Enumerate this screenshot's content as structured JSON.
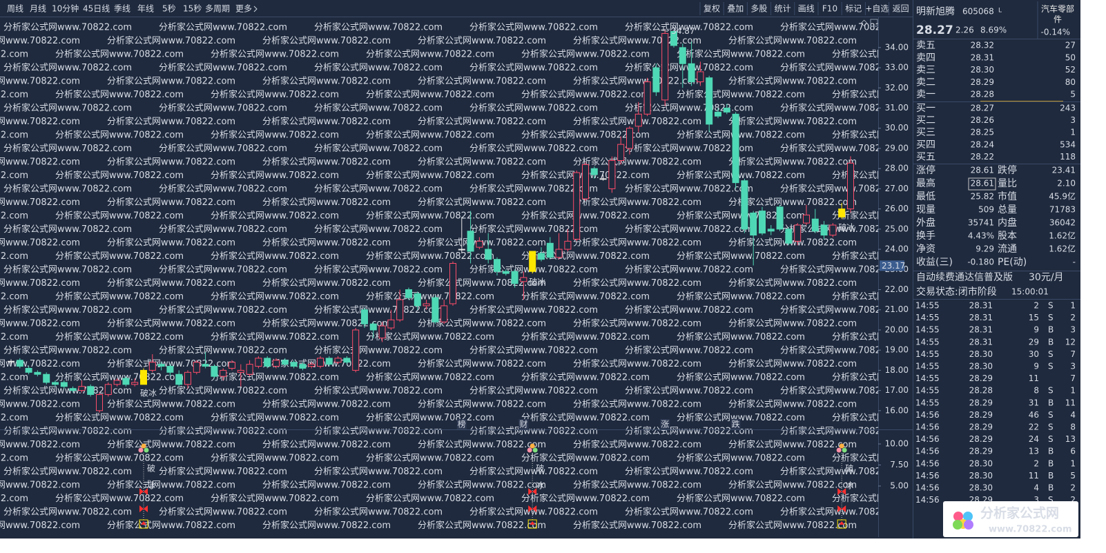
{
  "toolbar": {
    "left": [
      "周线",
      "月线",
      "10分钟",
      "45日线",
      "季线",
      "年线",
      "5秒",
      "15秒",
      "多周期",
      "更多"
    ],
    "right": [
      "复权",
      "叠加",
      "多股",
      "统计",
      "画线",
      "F10",
      "标记",
      "+自选",
      "返回"
    ]
  },
  "watermark": "分析家公式网www.70822.com",
  "chart_data": {
    "type": "candlestick",
    "open": [
      18.45,
      18.5,
      18.1,
      17.9,
      17.8,
      17.4,
      17.4,
      17.1,
      17.0,
      17.2,
      16.0,
      16.8,
      17.3,
      17.6,
      17.3,
      17.3,
      18.0,
      18.3,
      18.2,
      17.8,
      17.3,
      17.9,
      18.3,
      18.2,
      17.7,
      18.1,
      17.9,
      17.8,
      18.2,
      18.6,
      18.2,
      18.5,
      18.4,
      18.3,
      18.2,
      18.2,
      18.6,
      18.4,
      18.6,
      18.0,
      21.0,
      20.3,
      19.6,
      20.1,
      20.5,
      22.0,
      21.8,
      21.2,
      21.6,
      20.4,
      21.3,
      24.0,
      24.9,
      24.1,
      24.0,
      23.5,
      22.9,
      22.9,
      22.4,
      22.9,
      23.8,
      24.3,
      23.6,
      24.0,
      24.5,
      26.5,
      28.0,
      27.5,
      27.0,
      28.4,
      29.0,
      30.1,
      30.7,
      33.0,
      31.4,
      34.8,
      34.0,
      33.2,
      32.3,
      32.5,
      30.8,
      31.0,
      30.7,
      27.4,
      25.8,
      25.9,
      25.0,
      26.1,
      25.0,
      24.4,
      25.3,
      25.5,
      25.2,
      24.7,
      25.6,
      26.0
    ],
    "high": [
      18.55,
      18.6,
      18.2,
      18.0,
      17.9,
      17.5,
      17.5,
      17.2,
      17.5,
      17.3,
      16.9,
      17.4,
      17.6,
      17.7,
      17.6,
      18.1,
      18.8,
      18.4,
      18.3,
      18.0,
      18.0,
      18.5,
      18.9,
      18.3,
      18.1,
      18.5,
      18.3,
      18.5,
      18.7,
      18.7,
      18.6,
      18.6,
      18.5,
      18.4,
      18.4,
      18.7,
      18.7,
      18.7,
      18.7,
      20.1,
      21.1,
      20.4,
      20.4,
      21.0,
      22.0,
      22.1,
      21.9,
      21.5,
      21.7,
      21.5,
      23.4,
      25.6,
      25.9,
      24.6,
      24.8,
      23.6,
      23.0,
      23.0,
      22.9,
      23.9,
      24.1,
      24.6,
      24.8,
      25.0,
      27.9,
      28.3,
      28.1,
      27.7,
      28.6,
      29.6,
      30.1,
      31.3,
      32.5,
      33.2,
      34.87,
      34.8,
      34.2,
      34.3,
      33.3,
      32.6,
      31.0,
      31.2,
      30.8,
      27.5,
      25.9,
      26.1,
      25.2,
      26.2,
      25.1,
      25.3,
      26.2,
      26.0,
      25.4,
      25.3,
      26.3,
      28.61
    ],
    "low": [
      18.3,
      18.1,
      17.8,
      17.7,
      17.3,
      17.2,
      17.1,
      16.9,
      16.9,
      16.7,
      15.9,
      16.7,
      17.2,
      17.2,
      17.2,
      17.3,
      17.9,
      18.0,
      17.7,
      17.2,
      17.1,
      17.8,
      18.1,
      17.6,
      17.5,
      18.0,
      17.2,
      17.7,
      18.1,
      18.1,
      18.1,
      18.2,
      18.1,
      18.0,
      18.1,
      18.1,
      18.2,
      18.3,
      18.3,
      17.9,
      20.1,
      19.6,
      19.4,
      20.0,
      20.4,
      21.5,
      21.0,
      21.0,
      20.3,
      20.3,
      21.2,
      23.8,
      23.3,
      24.0,
      23.3,
      22.7,
      22.7,
      22.1,
      21.5,
      22.8,
      23.4,
      23.5,
      23.5,
      23.9,
      24.4,
      26.4,
      27.5,
      27.4,
      26.8,
      28.2,
      28.7,
      29.8,
      30.6,
      31.6,
      31.1,
      34.0,
      32.0,
      32.1,
      32.1,
      29.8,
      30.5,
      30.7,
      27.0,
      24.8,
      23.2,
      24.7,
      24.7,
      24.9,
      24.2,
      24.2,
      25.2,
      24.8,
      24.5,
      24.6,
      25.5,
      25.82
    ],
    "close": [
      18.45,
      18.2,
      17.9,
      17.8,
      17.4,
      17.3,
      17.2,
      17.0,
      17.2,
      16.8,
      16.8,
      17.3,
      17.5,
      17.3,
      17.4,
      18.0,
      18.4,
      18.2,
      17.9,
      17.3,
      17.9,
      18.4,
      18.2,
      17.7,
      18.0,
      18.4,
      18.0,
      18.3,
      18.6,
      18.2,
      18.5,
      18.3,
      18.2,
      18.1,
      18.3,
      18.6,
      18.3,
      18.6,
      18.4,
      20.0,
      20.3,
      20.0,
      20.2,
      20.5,
      21.5,
      21.6,
      21.2,
      21.3,
      20.4,
      21.2,
      23.3,
      24.0,
      23.9,
      24.4,
      23.5,
      22.9,
      22.8,
      22.3,
      22.6,
      23.9,
      23.5,
      23.6,
      24.0,
      24.4,
      27.8,
      28.2,
      27.7,
      27.5,
      28.4,
      29.2,
      30.0,
      30.7,
      32.3,
      31.8,
      34.7,
      34.1,
      33.2,
      32.3,
      32.8,
      30.2,
      30.6,
      30.8,
      27.3,
      25.0,
      24.7,
      24.8,
      24.9,
      25.0,
      24.3,
      25.2,
      25.7,
      24.9,
      24.7,
      25.2,
      26.0,
      28.27
    ],
    "ylim": [
      15.07,
      35.33
    ],
    "yticks": [
      {
        "value": 16,
        "label": "16.00"
      },
      {
        "value": 17,
        "label": "17.00"
      },
      {
        "value": 18,
        "label": "18.00"
      },
      {
        "value": 19,
        "label": "19.00"
      },
      {
        "value": 20,
        "label": "20.00"
      },
      {
        "value": 21,
        "label": "21.00"
      },
      {
        "value": 22,
        "label": "22.00"
      },
      {
        "value": 23,
        "label": "23.00"
      },
      {
        "value": 24,
        "label": "24.00"
      },
      {
        "value": 25,
        "label": "25.00"
      },
      {
        "value": 26,
        "label": "26.00"
      },
      {
        "value": 27,
        "label": "27.00"
      },
      {
        "value": 28,
        "label": "28.00"
      },
      {
        "value": 29,
        "label": "29.00"
      },
      {
        "value": 30,
        "label": "30.00"
      },
      {
        "value": 31,
        "label": "31.00"
      },
      {
        "value": 32,
        "label": "32.00"
      },
      {
        "value": 33,
        "label": "33.00"
      },
      {
        "value": 34,
        "label": "34.00"
      }
    ],
    "colors": {
      "up": "#ff4d6a",
      "down": "#4fd8b5",
      "flat": "#e8e8e8",
      "signal": "#ffe600"
    },
    "signals": [
      {
        "index": 15,
        "label": "破冰"
      },
      {
        "index": 59,
        "label": "破冰"
      },
      {
        "index": 94,
        "label": "破冰"
      }
    ],
    "high_label": 34.87,
    "price_marker": 23.17,
    "events": [
      {
        "index": 51,
        "label": "榜",
        "color": "#ffbf6a"
      },
      {
        "index": 58,
        "label": "财",
        "color": "#8ab4ff"
      },
      {
        "index": 74,
        "label": "涨",
        "color": "#ff6262"
      },
      {
        "index": 82,
        "label": "跌",
        "color": "#62f08e"
      }
    ]
  },
  "indicator": {
    "ylim": [
      -1.07,
      11.48
    ],
    "yticks": [
      {
        "value": 10,
        "label": "10.00"
      },
      {
        "value": 7.5,
        "label": "7.50"
      },
      {
        "value": 5,
        "label": "5.00"
      }
    ],
    "labels": [
      "破",
      "冰"
    ]
  },
  "quote": {
    "name": "明新旭腾",
    "code": "605068",
    "flag": "L",
    "industry": "汽车零部件",
    "industry_change": "-0.14%",
    "price": "28.27",
    "change": "2.26",
    "change_pct": "8.69%",
    "book": [
      [
        "卖五",
        "28.32",
        "27"
      ],
      [
        "卖四",
        "28.31",
        "50"
      ],
      [
        "卖三",
        "28.30",
        "52"
      ],
      [
        "卖二",
        "28.29",
        "80"
      ],
      [
        "卖一",
        "28.28",
        "5"
      ],
      [
        "买一",
        "28.27",
        "243"
      ],
      [
        "买二",
        "28.26",
        "3"
      ],
      [
        "买三",
        "28.25",
        "1"
      ],
      [
        "买四",
        "28.24",
        "534"
      ],
      [
        "买五",
        "28.22",
        "118"
      ]
    ],
    "stats": [
      [
        {
          "label": "涨停",
          "value": "28.61",
          "color": "#ff4a5a"
        },
        {
          "label": "跌停",
          "value": "23.41",
          "color": "#3fd6a5"
        }
      ],
      [
        {
          "label": "最高",
          "value": "28.61",
          "color": "#ff4a5a"
        },
        {
          "label": "量比",
          "value": "2.10",
          "color": "#ff4a5a"
        }
      ],
      [
        {
          "label": "最低",
          "value": "25.82",
          "color": "#3fd6a5"
        },
        {
          "label": "市值",
          "value": "45.9亿",
          "color": "#e8e8e8"
        }
      ],
      [
        {
          "label": "现量",
          "value": "509",
          "color": "#e040e0"
        },
        {
          "label": "总量",
          "value": "71783",
          "color": "#e8e8e8"
        }
      ],
      [
        {
          "label": "外盘",
          "value": "35741",
          "color": "#ff4a5a"
        },
        {
          "label": "内盘",
          "value": "36042",
          "color": "#3fd6a5"
        }
      ],
      [
        {
          "label": "换手",
          "value": "4.43%",
          "color": "#e8e8e8"
        },
        {
          "label": "股本",
          "value": "1.62亿",
          "color": "#e8e8e8"
        }
      ],
      [
        {
          "label": "净资",
          "value": "9.29",
          "color": "#e8e8e8"
        },
        {
          "label": "流通",
          "value": "1.62亿",
          "color": "#e8e8e8"
        }
      ],
      [
        {
          "label": "收益(三)",
          "value": "-0.180",
          "color": "#e8e8e8"
        },
        {
          "label": "PE(动)",
          "value": "-",
          "color": "#e8e8e8"
        }
      ]
    ],
    "banner": {
      "text": "自动续费通达信普及版",
      "price": "30元/月"
    },
    "status": {
      "label": "交易状态:闭市阶段",
      "time": "15:00:01"
    }
  },
  "trades": [
    [
      "14:55",
      "28.31",
      "2",
      "S",
      "1"
    ],
    [
      "14:55",
      "28.31",
      "15",
      "S",
      "2"
    ],
    [
      "14:55",
      "28.31",
      "9",
      "B",
      "3"
    ],
    [
      "14:55",
      "28.31",
      "29",
      "B",
      "12"
    ],
    [
      "14:55",
      "28.30",
      "30",
      "S",
      "7"
    ],
    [
      "14:55",
      "28.30",
      "9",
      "S",
      "3"
    ],
    [
      "14:55",
      "28.29",
      "11",
      null,
      "7"
    ],
    [
      "14:55",
      "28.28",
      "8",
      "S",
      "1"
    ],
    [
      "14:55",
      "28.29",
      "31",
      "B",
      "11"
    ],
    [
      "14:56",
      "28.29",
      "46",
      "S",
      "4"
    ],
    [
      "14:56",
      "28.29",
      "22",
      "S",
      "8"
    ],
    [
      "14:56",
      "28.29",
      "24",
      "S",
      "13"
    ],
    [
      "14:56",
      "28.29",
      "13",
      "B",
      "6"
    ],
    [
      "14:56",
      "28.30",
      "2",
      "B",
      "1"
    ],
    [
      "14:56",
      "28.30",
      "11",
      "B",
      "5"
    ],
    [
      "14:56",
      "28.30",
      "4",
      "B",
      "2"
    ],
    [
      "14:56",
      "28.29",
      "3",
      "S",
      "2"
    ]
  ],
  "logo": {
    "title": "分析家公式网",
    "url": "www.70822.com"
  }
}
